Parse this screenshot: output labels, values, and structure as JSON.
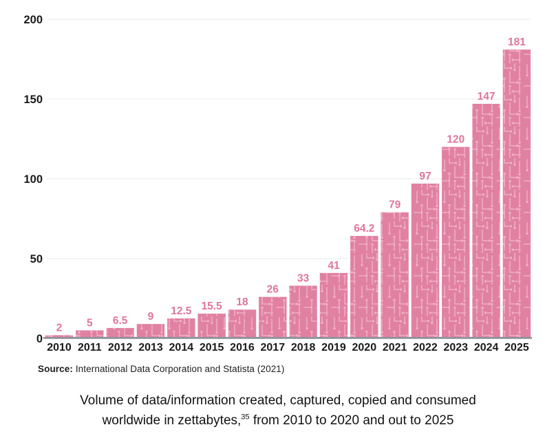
{
  "chart_data": {
    "type": "bar",
    "title": "",
    "categories": [
      "2010",
      "2011",
      "2012",
      "2013",
      "2014",
      "2015",
      "2016",
      "2017",
      "2018",
      "2019",
      "2020",
      "2021",
      "2022",
      "2023",
      "2024",
      "2025"
    ],
    "values": [
      2,
      5,
      6.5,
      9,
      12.5,
      15.5,
      18,
      26,
      33,
      41,
      64.2,
      79,
      97,
      120,
      147,
      181
    ],
    "xlabel": "",
    "ylabel": "",
    "ylim": [
      0,
      200
    ],
    "yticks": [
      0,
      50,
      100,
      150,
      200
    ],
    "grid": true,
    "legend": "none",
    "colors": {
      "bar": "#e181a1",
      "bar_pattern": "#eeb0c6",
      "value_label": "#e0759b",
      "tick_text": "#1a1a1a",
      "gridline": "#e9edf1",
      "axis_line": "#8f9398"
    }
  },
  "source": {
    "label": "Source:",
    "text": " International Data Corporation and Statista (2021)"
  },
  "caption": {
    "line1": "Volume of data/information created, captured, copied and consumed",
    "line2_before_sup": "worldwide in zettabytes,",
    "sup": "35",
    "line2_after_sup": " from 2010 to 2020 and out to 2025"
  }
}
